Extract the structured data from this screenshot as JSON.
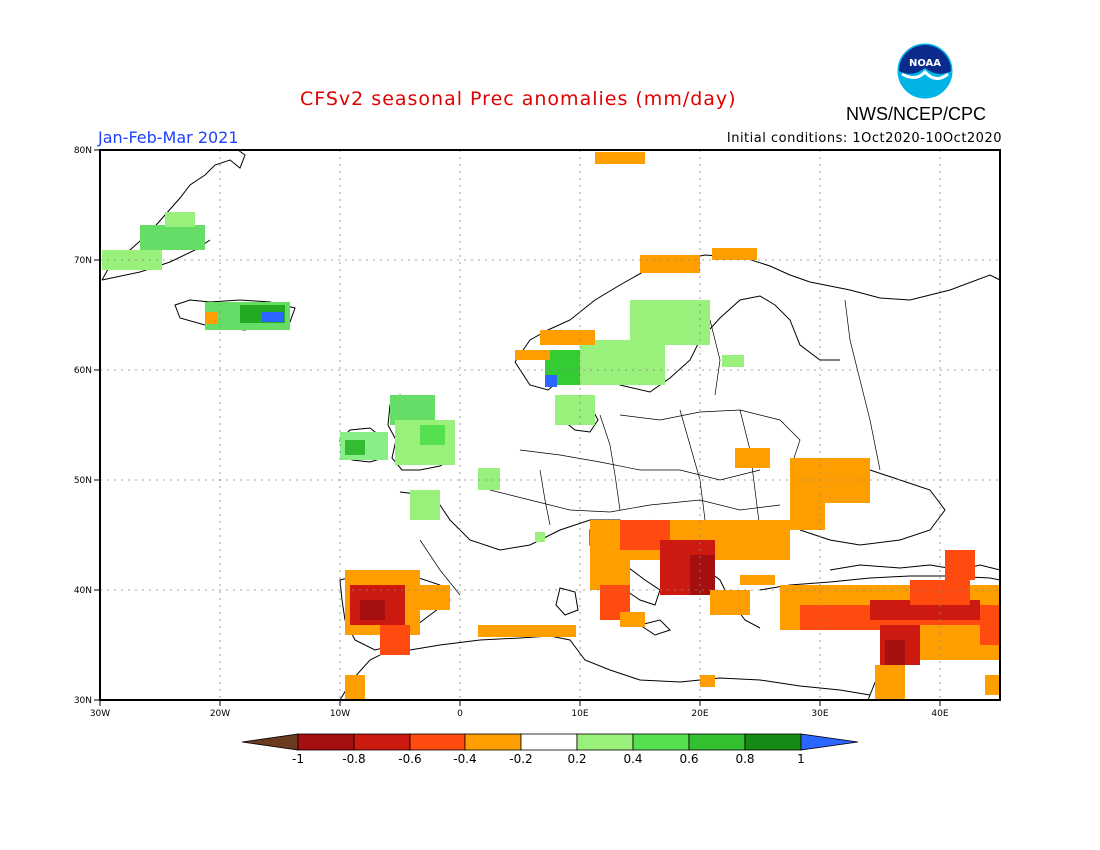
{
  "header": {
    "title": "CFSv2 seasonal Prec anomalies (mm/day)",
    "season": "Jan-Feb-Mar 2021",
    "initial_conditions": "Initial conditions: 1Oct2020-10Oct2020",
    "agency": "NWS/NCEP/CPC",
    "logo_text": "NOAA"
  },
  "map": {
    "region": "Europe",
    "lon_range": [
      -30,
      45
    ],
    "lat_range": [
      30,
      80
    ],
    "lon_ticks": [
      "30W",
      "20W",
      "10W",
      "0",
      "10E",
      "20E",
      "30E",
      "40E"
    ],
    "lat_ticks": [
      "80N",
      "70N",
      "60N",
      "50N",
      "40N",
      "30N"
    ],
    "anomaly_regions": [
      {
        "area": "Greenland east coast",
        "class": "0.2 to 0.6",
        "color": "#66dd66"
      },
      {
        "area": "Iceland",
        "class": "0.4 to 1",
        "color": "#22bb22"
      },
      {
        "area": "Ireland",
        "class": "0.2 to 0.6",
        "color": "#88ee88"
      },
      {
        "area": "Great Britain",
        "class": "0.2 to 0.4",
        "color": "#99ee99"
      },
      {
        "area": "Southern Norway",
        "class": "0.4 to 1",
        "color": "#33cc33"
      },
      {
        "area": "Sweden / Finland",
        "class": "0.2 to 0.4",
        "color": "#99ee99"
      },
      {
        "area": "Iberian Peninsula",
        "class": "-1 to -0.4",
        "color": "#cc2200"
      },
      {
        "area": "Balkans / Adriatic",
        "class": "-1 to -0.4",
        "color": "#bb1100"
      },
      {
        "area": "Italy",
        "class": "-0.6 to -0.2",
        "color": "#ff9900"
      },
      {
        "area": "Ukraine",
        "class": "-0.4 to -0.2",
        "color": "#ff9900"
      },
      {
        "area": "Turkey",
        "class": "-0.8 to -0.2",
        "color": "#dd3300"
      },
      {
        "area": "Levant / Syria",
        "class": "-1 to -0.4",
        "color": "#aa1100"
      },
      {
        "area": "Svalbard / N Scandinavia",
        "class": "-0.4 to -0.2",
        "color": "#ff9900"
      }
    ]
  },
  "colorbar": {
    "labels": [
      "-1",
      "-0.8",
      "-0.6",
      "-0.4",
      "-0.2",
      "0.2",
      "0.4",
      "0.6",
      "0.8",
      "1"
    ],
    "colors": [
      "#6b3a20",
      "#a50f0f",
      "#cc1a10",
      "#ff4a10",
      "#ff9e00",
      "#ffffff",
      "#99f07a",
      "#55e050",
      "#33c030",
      "#158a15",
      "#2a66ff"
    ]
  }
}
